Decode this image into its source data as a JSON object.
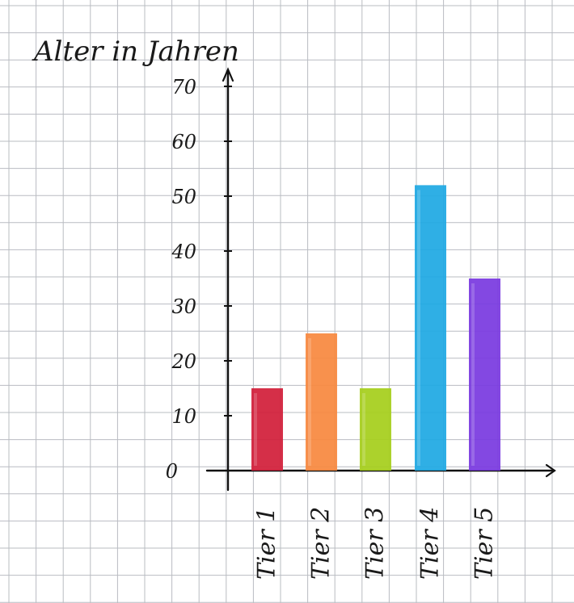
{
  "chart_data": {
    "type": "bar",
    "ylabel": "Alter in Jahren",
    "xlabel": "",
    "categories": [
      "Tier 1",
      "Tier 2",
      "Tier 3",
      "Tier 4",
      "Tier 5"
    ],
    "values": [
      15,
      25,
      15,
      52,
      35
    ],
    "colors": [
      "#d21f3a",
      "#f7893f",
      "#a6cf1c",
      "#1fa9e3",
      "#7a3ae0"
    ],
    "ylim": [
      0,
      70
    ],
    "yticks": [
      "0",
      "10",
      "20",
      "30",
      "40",
      "50",
      "60",
      "70"
    ],
    "grid": true,
    "legend": "none"
  }
}
